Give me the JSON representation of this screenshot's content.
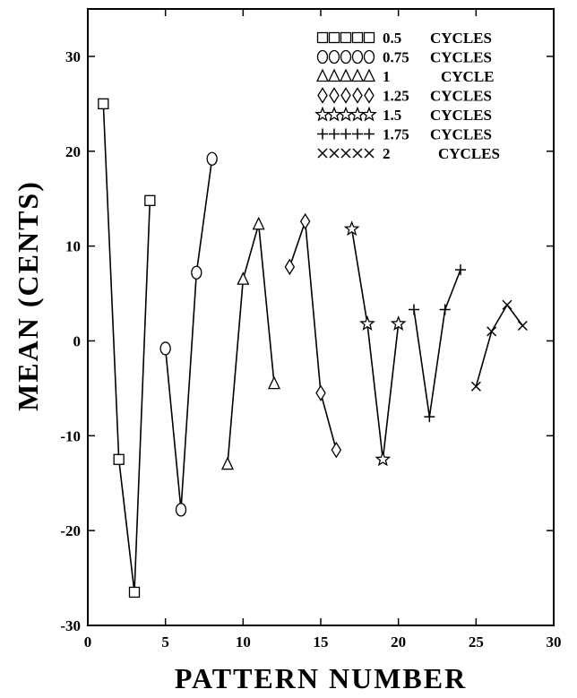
{
  "chart_data": {
    "type": "line",
    "xlabel": "PATTERN NUMBER",
    "ylabel": "MEAN  (CENTS)",
    "xlim": [
      0,
      30
    ],
    "ylim": [
      -30,
      35
    ],
    "xticks": [
      0,
      5,
      10,
      15,
      20,
      25,
      30
    ],
    "yticks": [
      -30,
      -20,
      -10,
      0,
      10,
      20,
      30
    ],
    "legend_position": "top-right",
    "series": [
      {
        "name": "0.5",
        "unit": "CYCLES",
        "marker": "square",
        "x": [
          1,
          2,
          3,
          4
        ],
        "y": [
          25,
          -12.5,
          -26.5,
          14.8
        ]
      },
      {
        "name": "0.75",
        "unit": "CYCLES",
        "marker": "circle",
        "x": [
          5,
          6,
          7,
          8
        ],
        "y": [
          -0.8,
          -17.8,
          7.2,
          19.2
        ]
      },
      {
        "name": "1",
        "unit": "CYCLE",
        "marker": "triangle",
        "x": [
          9,
          10,
          11,
          12
        ],
        "y": [
          -13,
          6.5,
          12.3,
          -4.5
        ]
      },
      {
        "name": "1.25",
        "unit": "CYCLES",
        "marker": "diamond",
        "x": [
          13,
          14,
          15,
          16
        ],
        "y": [
          7.8,
          12.6,
          -5.5,
          -11.5
        ]
      },
      {
        "name": "1.5",
        "unit": "CYCLES",
        "marker": "star",
        "x": [
          17,
          18,
          19,
          20
        ],
        "y": [
          11.8,
          1.8,
          -12.5,
          1.8
        ]
      },
      {
        "name": "1.75",
        "unit": "CYCLES",
        "marker": "plus",
        "x": [
          21,
          22,
          23,
          24
        ],
        "y": [
          3.3,
          -8,
          3.3,
          7.5
        ]
      },
      {
        "name": "2",
        "unit": "CYCLES",
        "marker": "x",
        "x": [
          25,
          26,
          27,
          28
        ],
        "y": [
          -4.8,
          1,
          3.8,
          1.6
        ]
      }
    ]
  }
}
